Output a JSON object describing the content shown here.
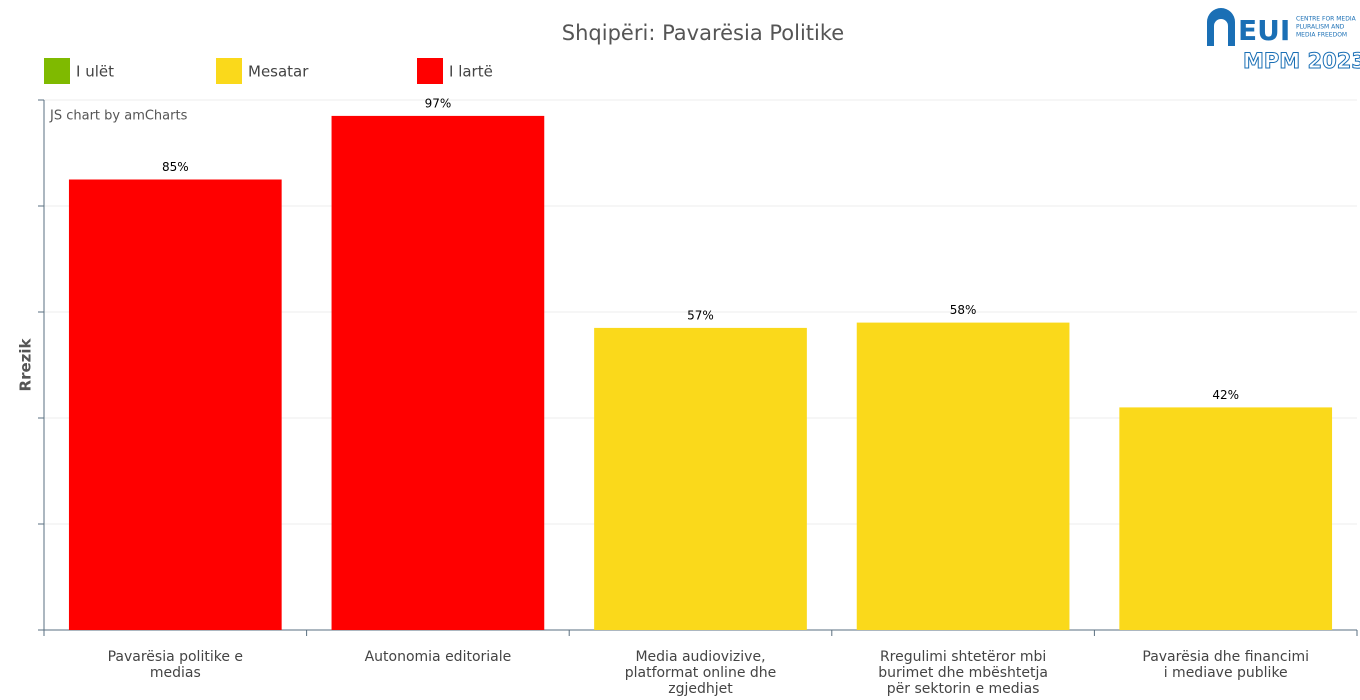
{
  "chart_data": {
    "type": "bar",
    "title": "Shqipëri: Pavarësia Politike",
    "y_label": "Rrezik",
    "credit": "JS chart by amCharts",
    "logo": {
      "name": "EUI",
      "lines": [
        "CENTRE FOR MEDIA",
        "PLURALISM AND",
        "MEDIA FREEDOM"
      ],
      "edition": "MPM 2023"
    },
    "legend": [
      {
        "name": "I ulët",
        "color": "#7fba00"
      },
      {
        "name": "Mesatar",
        "color": "#fad91b"
      },
      {
        "name": "I lartë",
        "color": "#ff0000"
      }
    ],
    "categories": [
      "Pavarësia politike e medias",
      "Autonomia editoriale",
      "Media audiovizive, platformat online dhe zgjedhjet",
      "Rregulimi shtetëror mbi burimet dhe mbështetja për sektorin e medias",
      "Pavarësia dhe financimi i mediave publike"
    ],
    "values": [
      85,
      97,
      57,
      58,
      42
    ],
    "value_labels": [
      "85%",
      "97%",
      "57%",
      "58%",
      "42%"
    ],
    "colors": [
      "#ff0000",
      "#ff0000",
      "#fad91b",
      "#fad91b",
      "#fad91b"
    ],
    "ylim": [
      0,
      100
    ],
    "yticks": [
      0,
      20,
      40,
      60,
      80,
      100
    ],
    "grid": true
  }
}
